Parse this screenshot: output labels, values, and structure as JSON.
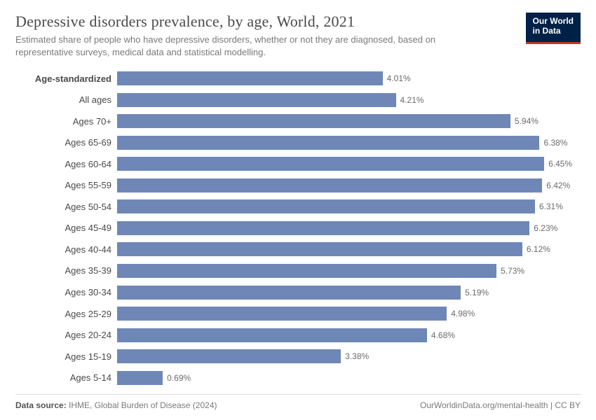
{
  "header": {
    "title": "Depressive disorders prevalence, by age, World, 2021",
    "subtitle": "Estimated share of people who have depressive disorders, whether or not they are diagnosed, based on representative surveys, medical data and statistical modelling.",
    "logo_line1": "Our World",
    "logo_line2": "in Data"
  },
  "chart": {
    "type": "bar-horizontal",
    "bar_color": "#6e87b7",
    "value_suffix": "%",
    "max_value": 7.0,
    "label_fontsize": 13,
    "value_fontsize": 12,
    "bold_labels": [
      "Age-standardized"
    ],
    "rows": [
      {
        "label": "Age-standardized",
        "value": 4.01
      },
      {
        "label": "All ages",
        "value": 4.21
      },
      {
        "label": "Ages 70+",
        "value": 5.94
      },
      {
        "label": "Ages 65-69",
        "value": 6.38
      },
      {
        "label": "Ages 60-64",
        "value": 6.45
      },
      {
        "label": "Ages 55-59",
        "value": 6.42
      },
      {
        "label": "Ages 50-54",
        "value": 6.31
      },
      {
        "label": "Ages 45-49",
        "value": 6.23
      },
      {
        "label": "Ages 40-44",
        "value": 6.12
      },
      {
        "label": "Ages 35-39",
        "value": 5.73
      },
      {
        "label": "Ages 30-34",
        "value": 5.19
      },
      {
        "label": "Ages 25-29",
        "value": 4.98
      },
      {
        "label": "Ages 20-24",
        "value": 4.68
      },
      {
        "label": "Ages 15-19",
        "value": 3.38
      },
      {
        "label": "Ages 5-14",
        "value": 0.69
      }
    ]
  },
  "footer": {
    "source_label": "Data source:",
    "source_text": "IHME, Global Burden of Disease (2024)",
    "attribution": "OurWorldinData.org/mental-health | CC BY"
  },
  "colors": {
    "title": "#4a4a4a",
    "subtitle": "#7a7a7a",
    "logo_bg": "#002147",
    "logo_accent": "#c0392b",
    "footer_rule": "#dcdcdc"
  }
}
